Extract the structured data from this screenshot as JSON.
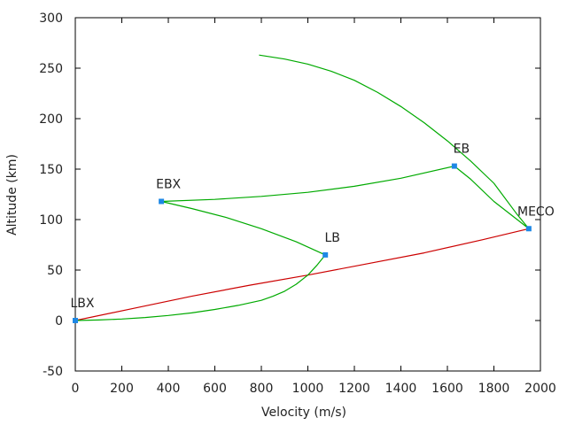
{
  "chart_data": {
    "type": "line",
    "title": "",
    "xlabel": "Velocity (m/s)",
    "ylabel": "Altitude (km)",
    "xlim": [
      0,
      2000
    ],
    "ylim": [
      -50,
      300
    ],
    "xticks": [
      0,
      200,
      400,
      600,
      800,
      1000,
      1200,
      1400,
      1600,
      1800,
      2000
    ],
    "yticks": [
      -50,
      0,
      50,
      100,
      150,
      200,
      250,
      300
    ],
    "grid": false,
    "series": [
      {
        "color": "#cc0000",
        "points": [
          [
            0,
            0
          ],
          [
            250,
            12
          ],
          [
            500,
            24
          ],
          [
            750,
            35
          ],
          [
            1000,
            45
          ],
          [
            1250,
            56
          ],
          [
            1500,
            67
          ],
          [
            1750,
            80
          ],
          [
            1950,
            91
          ]
        ]
      },
      {
        "color": "#00aa00",
        "points": [
          [
            0,
            0
          ],
          [
            100,
            0.5
          ],
          [
            200,
            1.5
          ],
          [
            300,
            3
          ],
          [
            400,
            5
          ],
          [
            500,
            7.5
          ],
          [
            600,
            11
          ],
          [
            700,
            15
          ],
          [
            800,
            20
          ],
          [
            850,
            24
          ],
          [
            900,
            29
          ],
          [
            950,
            36
          ],
          [
            1000,
            45
          ],
          [
            1040,
            55
          ],
          [
            1075,
            65
          ],
          [
            950,
            78
          ],
          [
            800,
            91
          ],
          [
            650,
            102
          ],
          [
            500,
            111
          ],
          [
            370,
            118
          ],
          [
            600,
            120
          ],
          [
            800,
            123
          ],
          [
            1000,
            127
          ],
          [
            1200,
            133
          ],
          [
            1400,
            141
          ],
          [
            1630,
            153
          ],
          [
            1700,
            140
          ],
          [
            1800,
            118
          ],
          [
            1900,
            100
          ],
          [
            1950,
            91
          ],
          [
            1900,
            105
          ],
          [
            1800,
            136
          ],
          [
            1700,
            158
          ],
          [
            1600,
            178
          ],
          [
            1500,
            196
          ],
          [
            1400,
            212
          ],
          [
            1300,
            226
          ],
          [
            1200,
            238
          ],
          [
            1100,
            247
          ],
          [
            1000,
            254
          ],
          [
            900,
            259
          ],
          [
            790,
            263
          ]
        ]
      }
    ],
    "markers": [
      {
        "label": "LBX",
        "x": 0,
        "y": 0
      },
      {
        "label": "LB",
        "x": 1075,
        "y": 65
      },
      {
        "label": "EBX",
        "x": 370,
        "y": 118
      },
      {
        "label": "EB",
        "x": 1630,
        "y": 153
      },
      {
        "label": "MECO",
        "x": 1950,
        "y": 91
      }
    ],
    "marker_color": "#1e88e5"
  }
}
